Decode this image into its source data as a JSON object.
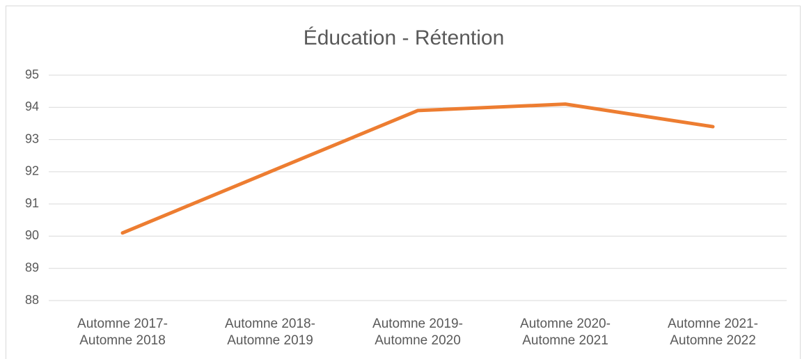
{
  "chart_data": {
    "type": "line",
    "title": "Éducation - Rétention",
    "categories": [
      "Automne 2017-\nAutomne 2018",
      "Automne 2018-\nAutomne 2019",
      "Automne 2019-\nAutomne 2020",
      "Automne 2020-\nAutomne 2021",
      "Automne 2021-\nAutomne 2022"
    ],
    "series": [
      {
        "color": "#ed7d31",
        "values": [
          90.1,
          92.0,
          93.9,
          94.1,
          93.4
        ]
      }
    ],
    "ylim": [
      88,
      95
    ],
    "yticks": [
      88,
      89,
      90,
      91,
      92,
      93,
      94,
      95
    ],
    "grid": true
  }
}
